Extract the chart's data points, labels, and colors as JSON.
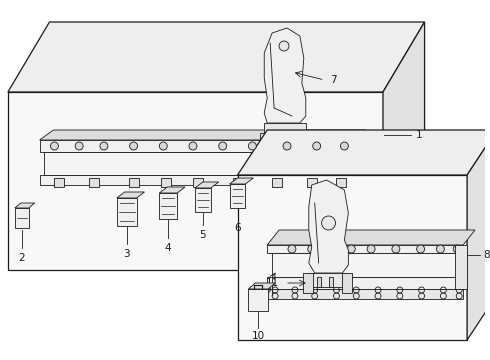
{
  "bg": "#ffffff",
  "lc": "#1a1a1a",
  "lw": 0.9,
  "thin": 0.6,
  "label_fs": 7.5,
  "fig_w": 4.9,
  "fig_h": 3.6,
  "dpi": 100
}
